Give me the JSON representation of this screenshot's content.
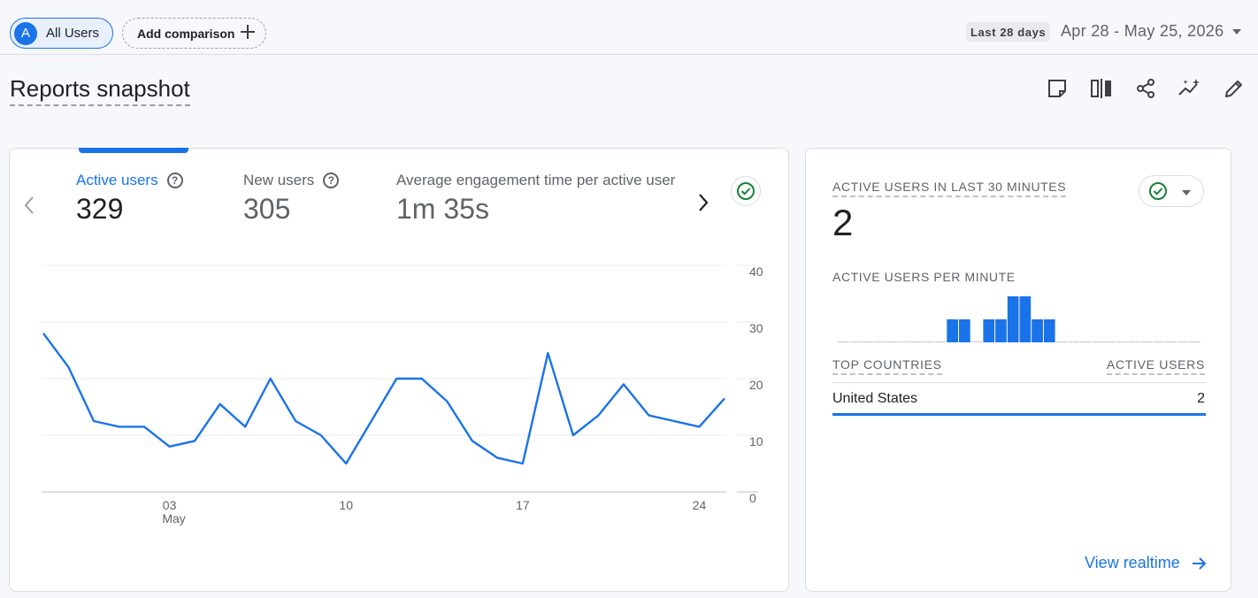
{
  "header": {
    "segment_initial": "A",
    "segment_label": "All Users",
    "add_comparison_label": "Add comparison",
    "date_badge": "Last 28 days",
    "date_range": "Apr 28 - May 25, 2026"
  },
  "page": {
    "title": "Reports snapshot",
    "toolbar_icons": [
      "note-icon",
      "compare-icon",
      "share-icon",
      "insights-icon",
      "edit-icon"
    ]
  },
  "metrics": [
    {
      "label": "Active users",
      "value": "329",
      "active": true
    },
    {
      "label": "New users",
      "value": "305",
      "active": false
    },
    {
      "label": "Average engagement time per active user",
      "value": "1m 35s",
      "active": false
    }
  ],
  "colors": {
    "accent": "#1a73e8",
    "check_green": "#188038",
    "text_secondary": "#5f6368"
  },
  "chart_data": {
    "type": "line",
    "series": [
      {
        "values": [
          28,
          22,
          12.5,
          11.5,
          11.5,
          8,
          9,
          15.5,
          11.5,
          20,
          12.5,
          10,
          5,
          12.5,
          20,
          20,
          16,
          9,
          6,
          5,
          24.5,
          10,
          13.5,
          19,
          13.5,
          12.5,
          11.5,
          16.5
        ]
      }
    ],
    "x": [
      "Apr 28",
      "Apr 29",
      "Apr 30",
      "May 1",
      "May 2",
      "May 3",
      "May 4",
      "May 5",
      "May 6",
      "May 7",
      "May 8",
      "May 9",
      "May 10",
      "May 11",
      "May 12",
      "May 13",
      "May 14",
      "May 15",
      "May 16",
      "May 17",
      "May 18",
      "May 19",
      "May 20",
      "May 21",
      "May 22",
      "May 23",
      "May 24",
      "May 25"
    ],
    "x_ticks": [
      {
        "index": 5,
        "label": "03",
        "sublabel": "May"
      },
      {
        "index": 12,
        "label": "10",
        "sublabel": ""
      },
      {
        "index": 19,
        "label": "17",
        "sublabel": ""
      },
      {
        "index": 26,
        "label": "24",
        "sublabel": ""
      }
    ],
    "ylim": [
      0,
      40
    ],
    "y_ticks": [
      0,
      10,
      20,
      30,
      40
    ],
    "grid": true,
    "y_axis_position": "right"
  },
  "realtime": {
    "title": "ACTIVE USERS IN LAST 30 MINUTES",
    "value": "2",
    "per_minute_label": "ACTIVE USERS PER MINUTE",
    "per_minute_bars": [
      0,
      0,
      0,
      0,
      0,
      0,
      0,
      0,
      0,
      1,
      1,
      0,
      1,
      1,
      2,
      2,
      1,
      1,
      0,
      0,
      0,
      0,
      0,
      0,
      0,
      0,
      0,
      0,
      0,
      0
    ],
    "countries_header": "TOP COUNTRIES",
    "users_header": "ACTIVE USERS",
    "rows": [
      {
        "country": "United States",
        "count": "2"
      }
    ],
    "view_link": "View realtime"
  }
}
